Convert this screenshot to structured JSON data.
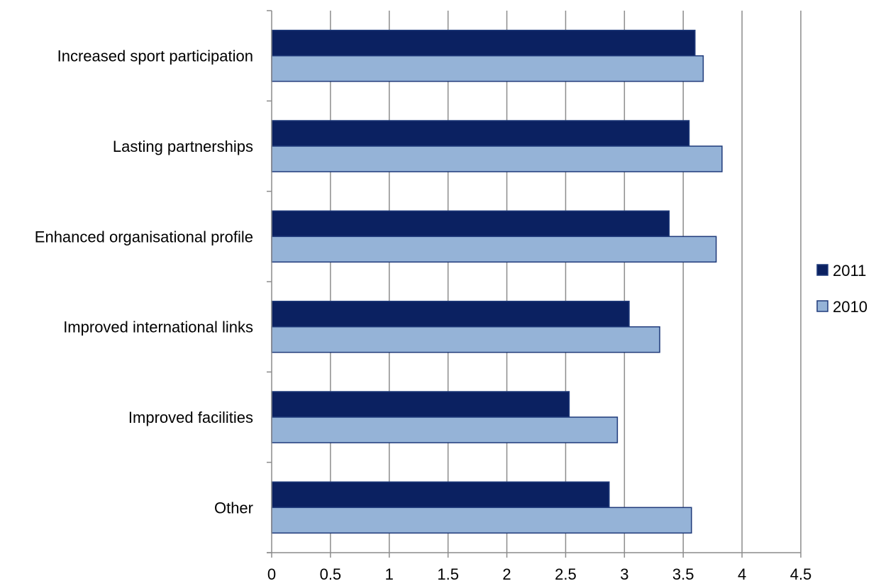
{
  "chart_data": {
    "type": "bar",
    "orientation": "horizontal",
    "title": "",
    "xlabel": "",
    "ylabel": "",
    "xlim": [
      0,
      4.5
    ],
    "x_ticks": [
      "0",
      "0.5",
      "1",
      "1.5",
      "2",
      "2.5",
      "3",
      "3.5",
      "4",
      "4.5"
    ],
    "grid": "vertical major gridlines",
    "legend_position": "right",
    "categories": [
      "Increased sport participation",
      "Lasting partnerships",
      "Enhanced organisational profile",
      "Improved international links",
      "Improved facilities",
      "Other"
    ],
    "series": [
      {
        "name": "2011",
        "color": "#0b2161",
        "values": [
          3.6,
          3.55,
          3.38,
          3.04,
          2.53,
          2.87
        ]
      },
      {
        "name": "2010",
        "color": "#95b3d7",
        "values": [
          3.67,
          3.83,
          3.78,
          3.3,
          2.94,
          3.57
        ]
      }
    ]
  }
}
